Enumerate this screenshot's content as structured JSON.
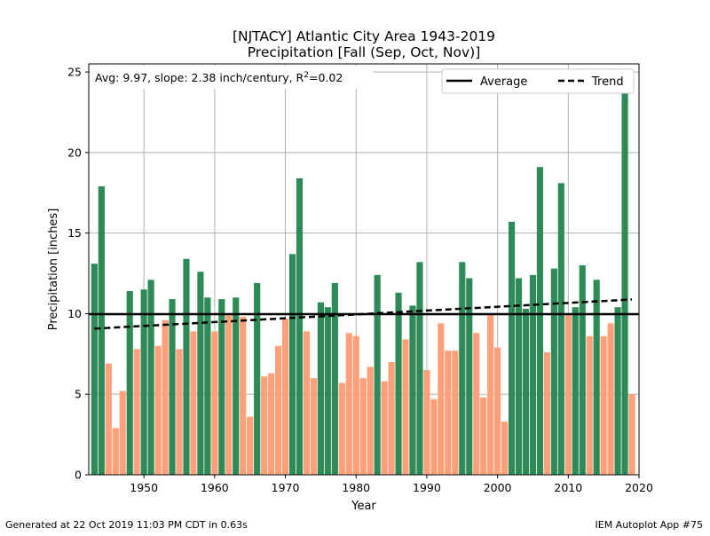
{
  "footer": {
    "generated": "Generated at 22 Oct 2019 11:03 PM CDT in 0.63s",
    "app": "IEM Autoplot App #75"
  },
  "colors": {
    "above": "#2e8b57",
    "below": "#ffa07a",
    "average": "#000000",
    "trend": "#000000",
    "grid": "#b0b0b0"
  },
  "chart_data": {
    "type": "bar",
    "title": "[NJTACY] Atlantic City Area 1943-2019",
    "subtitle": "Precipitation [Fall (Sep, Oct, Nov)]",
    "xlabel": "Year",
    "ylabel": "Precipitation [inches]",
    "xlim": [
      1942.2,
      2020
    ],
    "ylim": [
      0,
      25.5
    ],
    "xticks": [
      1950,
      1960,
      1970,
      1980,
      1990,
      2000,
      2010,
      2020
    ],
    "yticks": [
      0,
      5,
      10,
      15,
      20,
      25
    ],
    "grid": true,
    "legend_position": "top-right",
    "legend": [
      {
        "label": "Average",
        "style": "solid"
      },
      {
        "label": "Trend",
        "style": "dashed"
      }
    ],
    "annotation": {
      "prefix": "Avg: 9.97, slope: 2.38 inch/century, R",
      "sup": "2",
      "suffix": "=0.02"
    },
    "average": 9.97,
    "trend": {
      "x": [
        1943,
        2019
      ],
      "y": [
        9.07,
        10.88
      ]
    },
    "years": [
      1943,
      1944,
      1945,
      1946,
      1947,
      1948,
      1949,
      1950,
      1951,
      1952,
      1953,
      1954,
      1955,
      1956,
      1957,
      1958,
      1959,
      1960,
      1961,
      1962,
      1963,
      1964,
      1965,
      1966,
      1967,
      1968,
      1969,
      1970,
      1971,
      1972,
      1973,
      1974,
      1975,
      1976,
      1977,
      1978,
      1979,
      1980,
      1981,
      1982,
      1983,
      1984,
      1985,
      1986,
      1987,
      1988,
      1989,
      1990,
      1991,
      1992,
      1993,
      1994,
      1995,
      1996,
      1997,
      1998,
      1999,
      2000,
      2001,
      2002,
      2003,
      2004,
      2005,
      2006,
      2007,
      2008,
      2009,
      2010,
      2011,
      2012,
      2013,
      2014,
      2015,
      2016,
      2017,
      2018,
      2019
    ],
    "values": [
      13.1,
      17.9,
      6.9,
      2.9,
      5.2,
      11.4,
      7.8,
      11.5,
      12.1,
      8.0,
      9.6,
      10.9,
      7.8,
      13.4,
      8.9,
      12.6,
      11.0,
      8.9,
      10.9,
      9.9,
      11.0,
      9.8,
      3.6,
      11.9,
      6.1,
      6.3,
      8.0,
      9.7,
      13.7,
      18.4,
      8.9,
      6.0,
      10.7,
      10.4,
      11.9,
      5.7,
      8.8,
      8.6,
      6.0,
      6.7,
      12.4,
      5.8,
      7.0,
      11.3,
      8.4,
      10.5,
      13.2,
      6.5,
      4.7,
      9.4,
      7.7,
      7.7,
      13.2,
      12.2,
      8.8,
      4.8,
      9.9,
      7.9,
      3.3,
      15.7,
      12.2,
      10.3,
      12.4,
      19.1,
      7.6,
      12.8,
      18.1,
      9.9,
      10.4,
      13.0,
      8.6,
      12.1,
      8.6,
      9.4,
      10.4,
      25.0,
      5.0
    ]
  }
}
